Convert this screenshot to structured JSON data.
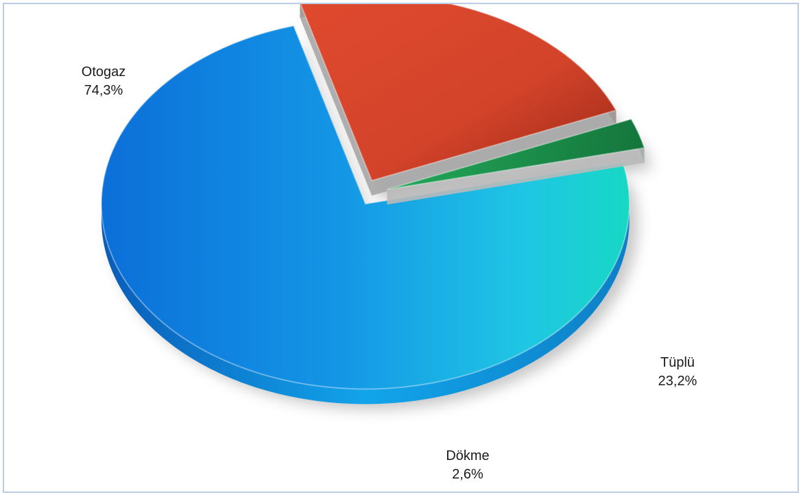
{
  "chart_data": {
    "type": "pie",
    "title": "",
    "categories": [
      "Otogaz",
      "Tüplü",
      "Dökme"
    ],
    "values": [
      74.3,
      23.2,
      2.6
    ],
    "value_labels": [
      "74,3%",
      "23,2%",
      "2,6%"
    ],
    "colors": [
      "#1a8fe0",
      "#cf4128",
      "#1f9a4e"
    ],
    "style": "3d-exploded",
    "legend": "none"
  }
}
